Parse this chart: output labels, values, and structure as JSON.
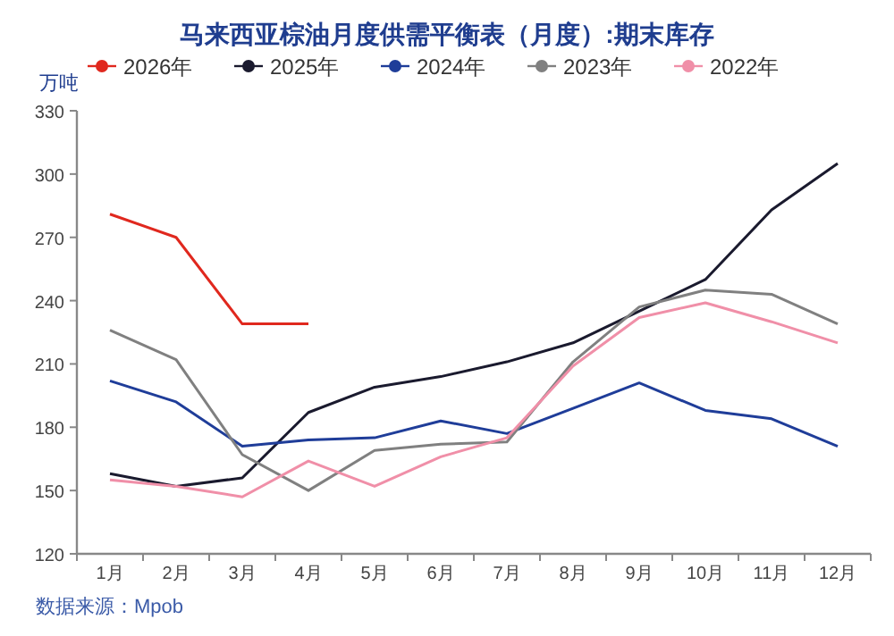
{
  "chart_data": {
    "type": "line",
    "title": "马来西亚棕油月度供需平衡表（月度）:期末库存",
    "ylabel": "万吨",
    "categories": [
      "1月",
      "2月",
      "3月",
      "4月",
      "5月",
      "6月",
      "7月",
      "8月",
      "9月",
      "10月",
      "11月",
      "12月"
    ],
    "series": [
      {
        "name": "2026年",
        "color": "#e0281e",
        "values": [
          281,
          270,
          229,
          229,
          null,
          null,
          null,
          null,
          null,
          null,
          null,
          null
        ]
      },
      {
        "name": "2025年",
        "color": "#1a1a2e",
        "values": [
          158,
          152,
          156,
          187,
          199,
          204,
          211,
          220,
          235,
          250,
          283,
          305
        ]
      },
      {
        "name": "2024年",
        "color": "#1f3d99",
        "values": [
          202,
          192,
          171,
          174,
          175,
          183,
          177,
          189,
          201,
          188,
          184,
          171
        ]
      },
      {
        "name": "2023年",
        "color": "#808080",
        "values": [
          226,
          212,
          167,
          150,
          169,
          172,
          173,
          211,
          237,
          245,
          243,
          229
        ]
      },
      {
        "name": "2022年",
        "color": "#f08fa8",
        "values": [
          155,
          152,
          147,
          164,
          152,
          166,
          175,
          209,
          232,
          239,
          230,
          220
        ]
      }
    ],
    "ylim": [
      120,
      330
    ],
    "yticks": [
      120,
      150,
      180,
      210,
      240,
      270,
      300,
      330
    ],
    "legend": "top",
    "annotations": [
      "数据来源：Mpob"
    ]
  }
}
